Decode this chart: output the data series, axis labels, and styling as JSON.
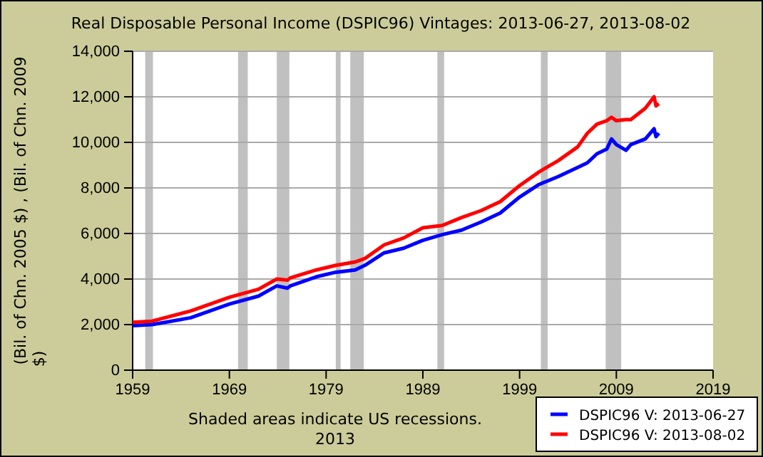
{
  "chart_data": {
    "type": "line",
    "title": "Real Disposable Personal Income (DSPIC96) Vintages: 2013-06-27, 2013-08-02",
    "ylabel": "(Bil. of Chn. 2005 $) , (Bil. of Chn. 2009 $)",
    "annotations": [
      "Shaded areas indicate US recessions.",
      "2013"
    ],
    "xlim": [
      1959,
      2019
    ],
    "xticks": [
      1959,
      1969,
      1979,
      1989,
      1999,
      2009,
      2019
    ],
    "ylim": [
      0,
      14000
    ],
    "yticks": [
      {
        "value": 0,
        "label": "0"
      },
      {
        "value": 2000,
        "label": "2,000"
      },
      {
        "value": 4000,
        "label": "4,000"
      },
      {
        "value": 6000,
        "label": "6,000"
      },
      {
        "value": 8000,
        "label": "8,000"
      },
      {
        "value": 10000,
        "label": "10,000"
      },
      {
        "value": 12000,
        "label": "12,000"
      },
      {
        "value": 14000,
        "label": "14,000"
      }
    ],
    "grid": "y",
    "legend": "bottom right",
    "line_style": "solid",
    "x": [
      1959,
      1961,
      1965,
      1969,
      1972,
      1973.9,
      1975,
      1975.3,
      1978,
      1980,
      1982,
      1983,
      1985,
      1987,
      1989,
      1991,
      1993,
      1995,
      1997,
      1999,
      2001,
      2003,
      2005,
      2006,
      2007,
      2008,
      2008.5,
      2009,
      2010,
      2010.5,
      2012,
      2012.9,
      2013.1,
      2013.4
    ],
    "series": [
      {
        "name": "DSPIC96 V: 2013-06-27",
        "color": "#0000ff",
        "values": [
          1950,
          2000,
          2300,
          2900,
          3250,
          3700,
          3600,
          3700,
          4100,
          4300,
          4400,
          4600,
          5150,
          5350,
          5700,
          5950,
          6150,
          6500,
          6900,
          7600,
          8150,
          8500,
          8900,
          9100,
          9500,
          9700,
          10150,
          9900,
          9650,
          9900,
          10150,
          10600,
          10250,
          10400
        ]
      },
      {
        "name": "DSPIC96 V: 2013-08-02",
        "color": "#ff0000",
        "values": [
          2100,
          2150,
          2600,
          3200,
          3550,
          4000,
          3950,
          4050,
          4400,
          4600,
          4750,
          4900,
          5500,
          5800,
          6250,
          6350,
          6700,
          7000,
          7400,
          8100,
          8700,
          9200,
          9800,
          10400,
          10800,
          10950,
          11100,
          10950,
          11000,
          11000,
          11500,
          12000,
          11600,
          11700
        ]
      }
    ],
    "bands": [
      {
        "axis": "x",
        "from": 1960.3,
        "to": 1961.1,
        "color": "#c0c0c0"
      },
      {
        "axis": "x",
        "from": 1969.9,
        "to": 1970.9,
        "color": "#c0c0c0"
      },
      {
        "axis": "x",
        "from": 1973.9,
        "to": 1975.2,
        "color": "#c0c0c0"
      },
      {
        "axis": "x",
        "from": 1980.0,
        "to": 1980.5,
        "color": "#c0c0c0"
      },
      {
        "axis": "x",
        "from": 1981.5,
        "to": 1982.9,
        "color": "#c0c0c0"
      },
      {
        "axis": "x",
        "from": 1990.5,
        "to": 1991.2,
        "color": "#c0c0c0"
      },
      {
        "axis": "x",
        "from": 2001.2,
        "to": 2001.9,
        "color": "#c0c0c0"
      },
      {
        "axis": "x",
        "from": 2007.9,
        "to": 2009.5,
        "color": "#c0c0c0"
      }
    ]
  }
}
